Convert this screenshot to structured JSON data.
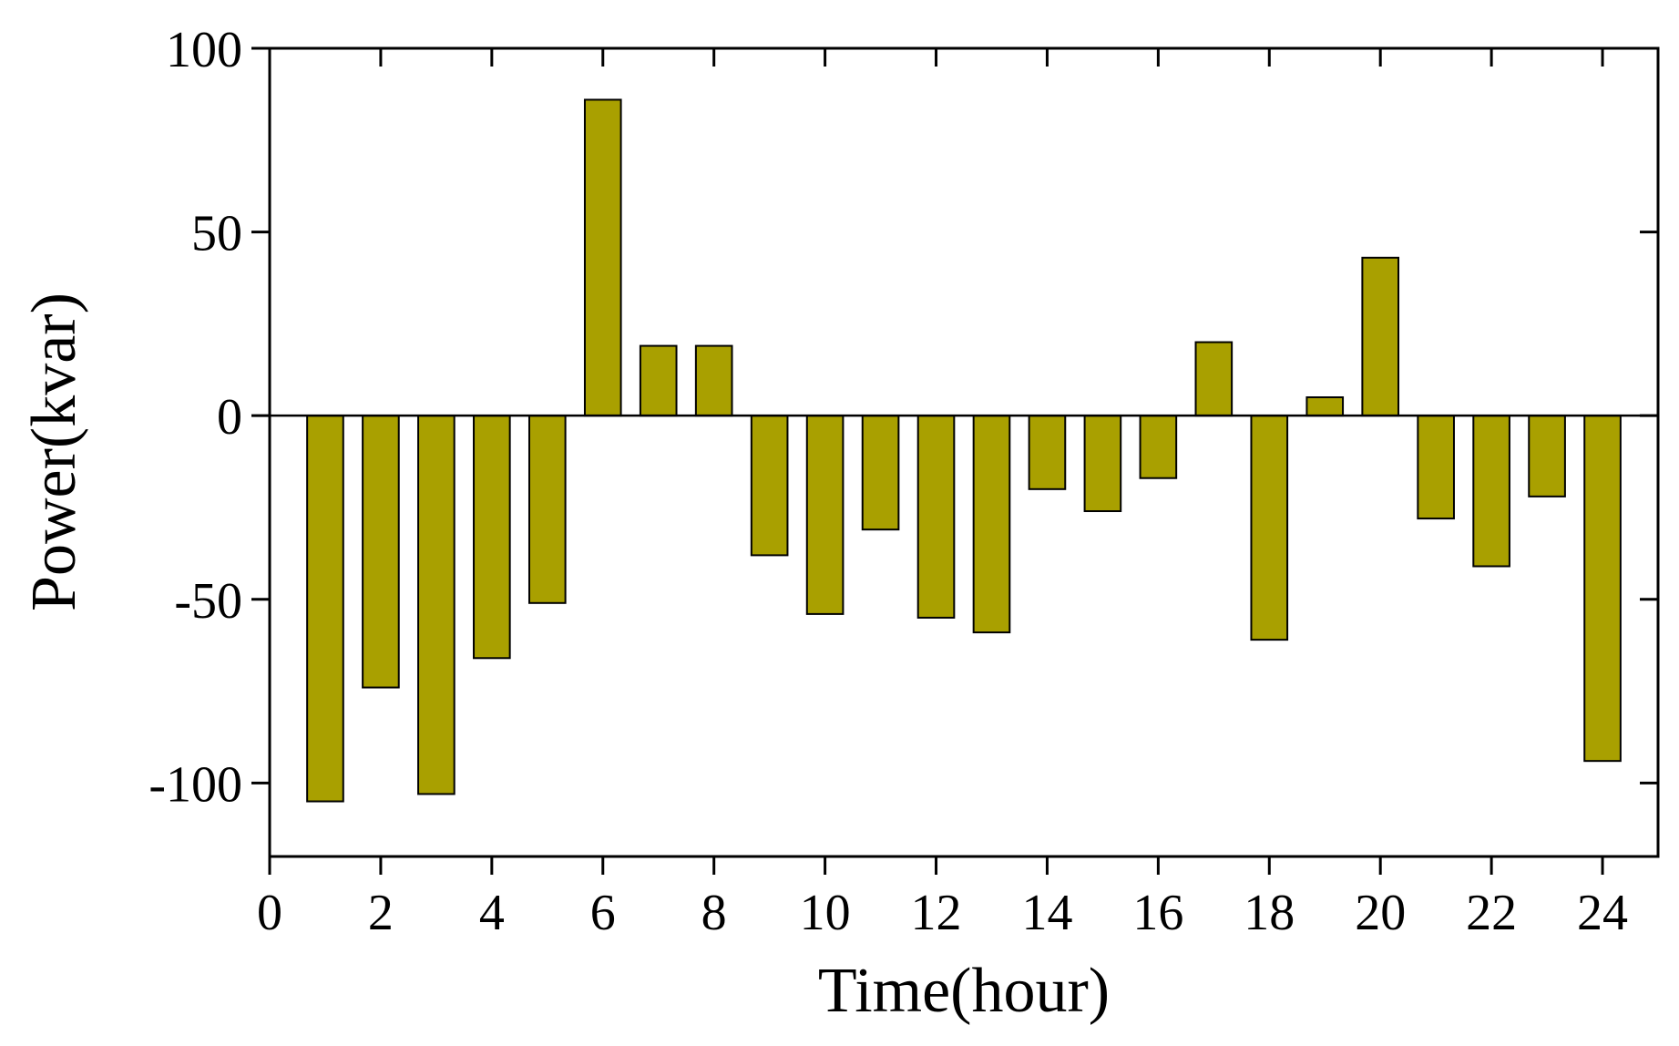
{
  "chart_data": {
    "type": "bar",
    "x_label": "Time(hour)",
    "y_label": "Power(kvar)",
    "x": [
      1,
      2,
      3,
      4,
      5,
      6,
      7,
      8,
      9,
      10,
      11,
      12,
      13,
      14,
      15,
      16,
      17,
      18,
      19,
      20,
      21,
      22,
      23,
      24
    ],
    "values": [
      -105,
      -74,
      -103,
      -66,
      -51,
      86,
      19,
      19,
      -38,
      -54,
      -31,
      -55,
      -59,
      -20,
      -26,
      -17,
      20,
      -61,
      5,
      43,
      -28,
      -41,
      -22,
      -94
    ],
    "color": "#a9a000",
    "xlim": [
      0,
      25
    ],
    "xticks": [
      0,
      2,
      4,
      6,
      8,
      10,
      12,
      14,
      16,
      18,
      20,
      22,
      24
    ],
    "ylim": [
      -120,
      100
    ],
    "yticks": [
      -100,
      -50,
      0,
      50,
      100
    ]
  }
}
